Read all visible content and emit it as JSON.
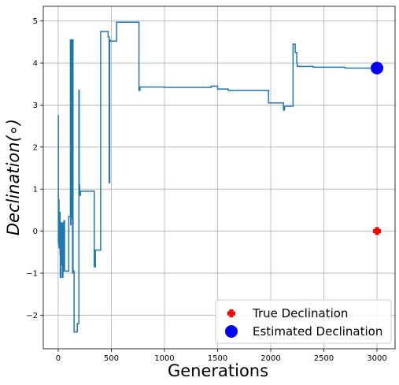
{
  "chart_data": {
    "type": "line",
    "title": "",
    "xlabel": "Generations",
    "ylabel": "Declination(∘)",
    "xlim": [
      -140,
      3170
    ],
    "ylim": [
      -2.8,
      5.35
    ],
    "xticks": [
      0,
      500,
      1000,
      1500,
      2000,
      2500,
      3000
    ],
    "yticks": [
      -2,
      -1,
      0,
      1,
      2,
      3,
      4,
      5
    ],
    "xtick_labels": [
      "0",
      "500",
      "1000",
      "1500",
      "2000",
      "2500",
      "3000"
    ],
    "ytick_labels": [
      "−2",
      "−1",
      "0",
      "1",
      "2",
      "3",
      "4",
      "5"
    ],
    "grid": true,
    "legend_position": "bottom-right",
    "colors": {
      "line": "#1f77b4",
      "true": "#ff0000",
      "estimated": "#0000ff",
      "grid": "#b0b0b0"
    },
    "series": [
      {
        "kind": "step-line",
        "x": [
          0,
          2,
          5,
          8,
          10,
          12,
          15,
          18,
          20,
          25,
          30,
          35,
          40,
          45,
          50,
          55,
          60,
          65,
          70,
          80,
          100,
          115,
          118,
          120,
          122,
          125,
          128,
          130,
          132,
          135,
          138,
          140,
          150,
          160,
          180,
          190,
          195,
          198,
          200,
          203,
          207,
          210,
          215,
          220,
          250,
          300,
          330,
          340,
          345,
          350,
          400,
          410,
          420,
          450,
          470,
          475,
          480,
          485,
          490,
          500,
          550,
          600,
          700,
          750,
          760,
          770,
          800,
          900,
          1000,
          1100,
          1200,
          1300,
          1400,
          1440,
          1460,
          1500,
          1540,
          1600,
          1700,
          1800,
          1900,
          1970,
          1980,
          2100,
          2120,
          2130,
          2200,
          2210,
          2220,
          2230,
          2240,
          2245,
          2250,
          2260,
          2300,
          2400,
          2500,
          2700,
          2900,
          3000
        ],
        "y": [
          2.75,
          -0.3,
          0.75,
          -0.4,
          0.4,
          0.2,
          0.45,
          -0.55,
          -1.1,
          0.2,
          -0.8,
          0.18,
          -1.1,
          0.2,
          -0.95,
          0.25,
          -0.95,
          -0.95,
          -0.95,
          -0.95,
          0.35,
          4.55,
          0.15,
          4.55,
          2.5,
          4.55,
          0.3,
          4.55,
          2.6,
          -1.0,
          4.55,
          -0.95,
          -2.4,
          -2.4,
          -2.2,
          -2.2,
          3.35,
          0.9,
          1.1,
          0.85,
          0.85,
          0.95,
          0.95,
          0.95,
          0.95,
          0.95,
          0.95,
          -0.85,
          -0.85,
          -0.45,
          4.75,
          4.75,
          4.75,
          4.75,
          4.62,
          4.62,
          1.15,
          4.55,
          4.52,
          4.52,
          4.97,
          4.97,
          4.97,
          4.97,
          3.35,
          3.43,
          3.43,
          3.43,
          3.42,
          3.42,
          3.42,
          3.42,
          3.42,
          3.45,
          3.45,
          3.38,
          3.38,
          3.35,
          3.35,
          3.35,
          3.35,
          3.35,
          3.05,
          3.05,
          2.88,
          2.97,
          2.97,
          4.45,
          4.45,
          4.25,
          4.25,
          4.0,
          3.92,
          3.92,
          3.92,
          3.9,
          3.9,
          3.88,
          3.88,
          3.88
        ]
      },
      {
        "name": "True Declination",
        "kind": "marker",
        "marker": "plus-filled",
        "x": [
          3000
        ],
        "y": [
          0
        ]
      },
      {
        "name": "Estimated Declination",
        "kind": "marker",
        "marker": "circle",
        "x": [
          3000
        ],
        "y": [
          3.88
        ]
      }
    ]
  }
}
